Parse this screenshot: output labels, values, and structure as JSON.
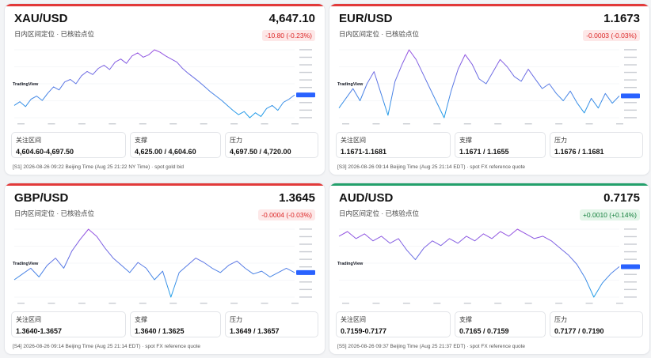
{
  "colors": {
    "down_bar": "#e23a3a",
    "up_bar": "#22a06b",
    "line_start": "#9b4fe0",
    "line_end": "#1ea0e8",
    "label_tag": "#2962ff"
  },
  "labels": {
    "sub": "日内区间定位 · 已核验点位",
    "focus": "关注区间",
    "support": "支撑",
    "resistance": "压力",
    "tv_brand": "TradingView"
  },
  "cards": [
    {
      "pair": "XAU/USD",
      "price": "4,647.10",
      "change": "-10.80 (-0.23%)",
      "direction": "down",
      "focus": "4,604.60-4,697.50",
      "support": "4,625.00 / 4,604.60",
      "resistance": "4,697.50 / 4,720.00",
      "footer": "[S1] 2026-08-26 09:22 Beijing Time (Aug 25 21:22 NY Time) · spot gold bid",
      "series": [
        4630,
        4636,
        4628,
        4640,
        4645,
        4638,
        4650,
        4660,
        4655,
        4668,
        4672,
        4665,
        4678,
        4685,
        4680,
        4690,
        4695,
        4688,
        4700,
        4705,
        4698,
        4710,
        4715,
        4708,
        4712,
        4720,
        4716,
        4710,
        4705,
        4700,
        4690,
        4682,
        4675,
        4668,
        4660,
        4652,
        4645,
        4638,
        4630,
        4622,
        4615,
        4620,
        4610,
        4618,
        4612,
        4625,
        4630,
        4622,
        4635,
        4640,
        4647
      ]
    },
    {
      "pair": "EUR/USD",
      "price": "1.1673",
      "change": "-0.0003 (-0.03%)",
      "direction": "down",
      "focus": "1.1671-1.1681",
      "support": "1.1671 / 1.1655",
      "resistance": "1.1676 / 1.1681",
      "footer": "[S3] 2026-08-26 09:14 Beijing Time (Aug 25 21:14 EDT) · spot FX reference quote",
      "series": [
        1.1668,
        1.1672,
        1.1676,
        1.1671,
        1.1678,
        1.1683,
        1.1674,
        1.1665,
        1.1679,
        1.1686,
        1.1692,
        1.1688,
        1.1682,
        1.1676,
        1.167,
        1.1664,
        1.1675,
        1.1684,
        1.169,
        1.1686,
        1.168,
        1.1678,
        1.1683,
        1.1688,
        1.1685,
        1.1681,
        1.1679,
        1.1684,
        1.168,
        1.1676,
        1.1678,
        1.1674,
        1.1671,
        1.1675,
        1.167,
        1.1666,
        1.1672,
        1.1668,
        1.1674,
        1.167,
        1.1673
      ]
    },
    {
      "pair": "GBP/USD",
      "price": "1.3645",
      "change": "-0.0004 (-0.03%)",
      "direction": "down",
      "focus": "1.3640-1.3657",
      "support": "1.3640 / 1.3625",
      "resistance": "1.3649 / 1.3657",
      "footer": "[S4] 2026-08-26 09:14 Beijing Time (Aug 25 21:14 EDT) · spot FX reference quote",
      "series": [
        1.364,
        1.3644,
        1.3648,
        1.3642,
        1.365,
        1.3655,
        1.3648,
        1.366,
        1.3668,
        1.3675,
        1.367,
        1.3662,
        1.3655,
        1.365,
        1.3645,
        1.3652,
        1.3648,
        1.364,
        1.3646,
        1.3628,
        1.3645,
        1.365,
        1.3655,
        1.3652,
        1.3648,
        1.3645,
        1.365,
        1.3653,
        1.3648,
        1.3644,
        1.3646,
        1.3642,
        1.3645,
        1.3648,
        1.3645
      ]
    },
    {
      "pair": "AUD/USD",
      "price": "0.7175",
      "change": "+0.0010 (+0.14%)",
      "direction": "up",
      "focus": "0.7159-0.7177",
      "support": "0.7165 / 0.7159",
      "resistance": "0.7177 / 0.7190",
      "footer": "[S5] 2026-08-26 09:37 Beijing Time (Aug 25 21:37 EDT) · spot FX reference quote",
      "series": [
        0.7188,
        0.719,
        0.7187,
        0.7189,
        0.7186,
        0.7188,
        0.7185,
        0.7187,
        0.7182,
        0.7178,
        0.7183,
        0.7186,
        0.7184,
        0.7187,
        0.7185,
        0.7188,
        0.7186,
        0.7189,
        0.7187,
        0.719,
        0.7188,
        0.7191,
        0.7189,
        0.7187,
        0.7188,
        0.7186,
        0.7183,
        0.718,
        0.7176,
        0.717,
        0.7162,
        0.7168,
        0.7172,
        0.7175
      ]
    }
  ]
}
